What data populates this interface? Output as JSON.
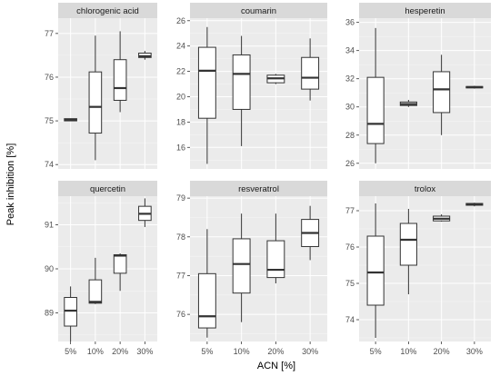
{
  "chart_data": {
    "type": "boxplot",
    "xlabel": "ACN [%]",
    "ylabel": "Peak inhibition [%]",
    "categories": [
      "5%",
      "10%",
      "20%",
      "30%"
    ],
    "grid": true,
    "colors": {
      "panel_bg": "#EBEBEB",
      "strip_bg": "#D9D9D9",
      "grid_major": "#FFFFFF",
      "box_fill": "#FFFFFF",
      "box_line": "#333333"
    },
    "panels": [
      {
        "name": "chlorogenic acid",
        "ylim": [
          73.9,
          77.35
        ],
        "yticks": [
          74,
          75,
          76,
          77
        ],
        "boxes": [
          {
            "category": "5%",
            "min": 75.0,
            "q1": 75.0,
            "median": 75.02,
            "q3": 75.05,
            "max": 75.05
          },
          {
            "category": "10%",
            "min": 74.1,
            "q1": 74.72,
            "median": 75.32,
            "q3": 76.12,
            "max": 76.95
          },
          {
            "category": "20%",
            "min": 75.2,
            "q1": 75.47,
            "median": 75.75,
            "q3": 76.4,
            "max": 77.05
          },
          {
            "category": "30%",
            "min": 76.4,
            "q1": 76.45,
            "median": 76.48,
            "q3": 76.55,
            "max": 76.6
          }
        ]
      },
      {
        "name": "coumarin",
        "ylim": [
          14.3,
          26.2
        ],
        "yticks": [
          16,
          18,
          20,
          22,
          24,
          26
        ],
        "boxes": [
          {
            "category": "5%",
            "min": 14.7,
            "q1": 18.3,
            "median": 22.05,
            "q3": 23.9,
            "max": 25.5
          },
          {
            "category": "10%",
            "min": 16.1,
            "q1": 19.0,
            "median": 21.8,
            "q3": 23.3,
            "max": 24.8
          },
          {
            "category": "20%",
            "min": 21.0,
            "q1": 21.1,
            "median": 21.45,
            "q3": 21.7,
            "max": 21.8
          },
          {
            "category": "30%",
            "min": 19.7,
            "q1": 20.6,
            "median": 21.5,
            "q3": 23.1,
            "max": 24.6
          }
        ]
      },
      {
        "name": "hesperetin",
        "ylim": [
          25.6,
          36.3
        ],
        "yticks": [
          26,
          28,
          30,
          32,
          34,
          36
        ],
        "boxes": [
          {
            "category": "5%",
            "min": 26.0,
            "q1": 27.4,
            "median": 28.8,
            "q3": 32.1,
            "max": 35.6
          },
          {
            "category": "10%",
            "min": 30.0,
            "q1": 30.1,
            "median": 30.2,
            "q3": 30.35,
            "max": 30.5
          },
          {
            "category": "20%",
            "min": 28.0,
            "q1": 29.6,
            "median": 31.25,
            "q3": 32.5,
            "max": 33.7
          },
          {
            "category": "30%",
            "min": 31.3,
            "q1": 31.35,
            "median": 31.4,
            "q3": 31.45,
            "max": 31.5
          }
        ]
      },
      {
        "name": "quercetin",
        "ylim": [
          88.35,
          91.65
        ],
        "yticks": [
          89,
          90,
          91
        ],
        "boxes": [
          {
            "category": "5%",
            "min": 88.35,
            "q1": 88.7,
            "median": 89.05,
            "q3": 89.35,
            "max": 89.6
          },
          {
            "category": "10%",
            "min": 89.2,
            "q1": 89.22,
            "median": 89.25,
            "q3": 89.75,
            "max": 90.25
          },
          {
            "category": "20%",
            "min": 89.5,
            "q1": 89.9,
            "median": 90.3,
            "q3": 90.32,
            "max": 90.35
          },
          {
            "category": "30%",
            "min": 90.95,
            "q1": 91.1,
            "median": 91.25,
            "q3": 91.42,
            "max": 91.6
          }
        ]
      },
      {
        "name": "resveratrol",
        "ylim": [
          75.3,
          79.05
        ],
        "yticks": [
          76,
          77,
          78,
          79
        ],
        "boxes": [
          {
            "category": "5%",
            "min": 75.4,
            "q1": 75.65,
            "median": 75.95,
            "q3": 77.05,
            "max": 78.2
          },
          {
            "category": "10%",
            "min": 75.8,
            "q1": 76.55,
            "median": 77.3,
            "q3": 77.95,
            "max": 78.6
          },
          {
            "category": "20%",
            "min": 76.8,
            "q1": 76.95,
            "median": 77.15,
            "q3": 77.9,
            "max": 78.6
          },
          {
            "category": "30%",
            "min": 77.4,
            "q1": 77.75,
            "median": 78.1,
            "q3": 78.45,
            "max": 78.8
          }
        ]
      },
      {
        "name": "trolox",
        "ylim": [
          73.4,
          77.4
        ],
        "yticks": [
          74,
          75,
          76,
          77
        ],
        "boxes": [
          {
            "category": "5%",
            "min": 73.5,
            "q1": 74.4,
            "median": 75.3,
            "q3": 76.3,
            "max": 77.2
          },
          {
            "category": "10%",
            "min": 74.7,
            "q1": 75.5,
            "median": 76.2,
            "q3": 76.65,
            "max": 77.05
          },
          {
            "category": "20%",
            "min": 76.7,
            "q1": 76.72,
            "median": 76.78,
            "q3": 76.85,
            "max": 76.9
          },
          {
            "category": "30%",
            "min": 77.12,
            "q1": 77.15,
            "median": 77.18,
            "q3": 77.2,
            "max": 77.22
          }
        ]
      }
    ]
  }
}
